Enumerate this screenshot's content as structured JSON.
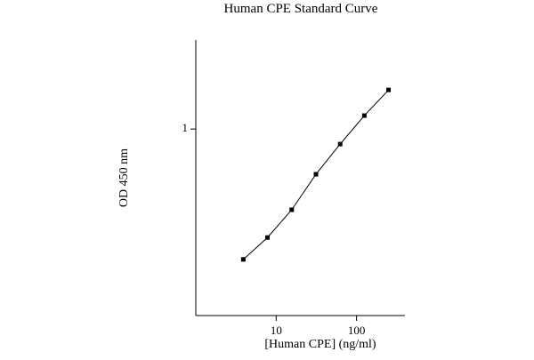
{
  "chart_data": {
    "type": "line",
    "title": "Human CPE Standard Curve",
    "x_label": "[Human CPE] (ng/ml)",
    "y_label": "OD 450 nm",
    "x": [
      3.9,
      7.8,
      15.6,
      31.25,
      62.5,
      125,
      250
    ],
    "series": [
      {
        "color": "#000000",
        "values": [
          0.2,
          0.262,
          0.369,
          0.572,
          0.83,
          1.18,
          1.62
        ]
      }
    ],
    "xscale": "log",
    "yscale": "log",
    "xlim": [
      1,
      400
    ],
    "ylim": [
      0.1,
      3
    ],
    "xticks": [
      10,
      100
    ],
    "yticks": [
      1
    ],
    "grid": false
  }
}
